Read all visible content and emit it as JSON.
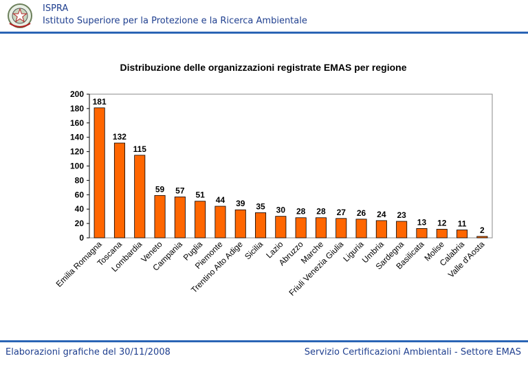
{
  "header": {
    "org_short": "ISPRA",
    "org_long": "Istituto Superiore per la Protezione e la Ricerca Ambientale"
  },
  "footer": {
    "left": "Elaborazioni grafiche del 30/11/2008",
    "right": "Servizio Certificazioni Ambientali - Settore EMAS"
  },
  "colors": {
    "bar": "#ff6600",
    "bar_stroke": "#000000",
    "brand_blue": "#2a64b5"
  },
  "chart_data": {
    "type": "bar",
    "title": "Distribuzione delle organizzazioni registrate EMAS per regione",
    "categories": [
      "Emilia Romagna",
      "Toscana",
      "Lombardia",
      "Veneto",
      "Campania",
      "Puglia",
      "Piemonte",
      "Trentino Alto Adige",
      "Sicilia",
      "Lazio",
      "Abruzzo",
      "Marche",
      "Friuli Venezia Giulia",
      "Liguria",
      "Umbria",
      "Sardegna",
      "Basilicata",
      "Molise",
      "Calabria",
      "Valle d'Aosta"
    ],
    "values": [
      181,
      132,
      115,
      59,
      57,
      51,
      44,
      39,
      35,
      30,
      28,
      28,
      27,
      26,
      24,
      23,
      13,
      12,
      11,
      2
    ],
    "ylim": [
      0,
      200
    ],
    "yticks": [
      0,
      20,
      40,
      60,
      80,
      100,
      120,
      140,
      160,
      180,
      200
    ],
    "grid": false,
    "legend": "none"
  }
}
